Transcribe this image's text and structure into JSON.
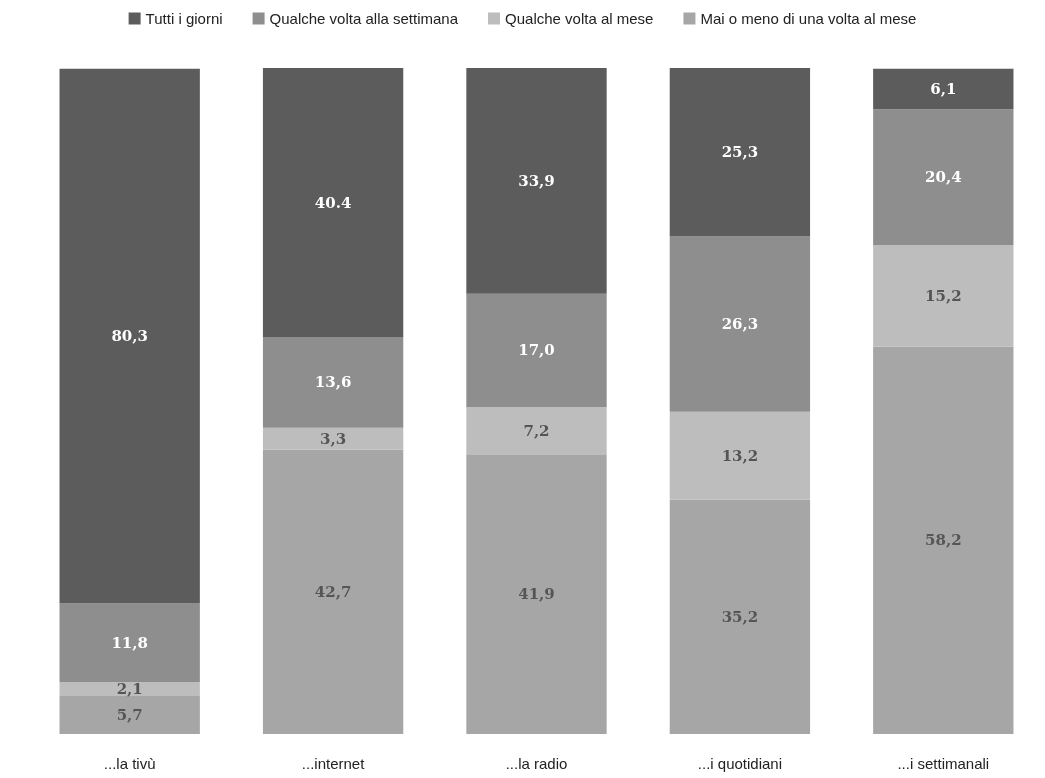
{
  "chart_data": {
    "type": "bar",
    "stacked": true,
    "legend": "top",
    "tick_labels": "x",
    "categories": [
      "...la tivù",
      "...internet",
      "...la radio",
      "...i quotidiani",
      "...i settimanali"
    ],
    "series": [
      {
        "name": "Mai o meno di una volta al mese",
        "color": "#a6a6a6",
        "values": [
          5.7,
          42.7,
          41.9,
          35.2,
          58.2
        ],
        "value_labels": [
          "5,7",
          "42,7",
          "41,9",
          "35,2",
          "58,2"
        ]
      },
      {
        "name": "Qualche volta al mese",
        "color": "#bdbdbd",
        "values": [
          2.1,
          3.3,
          7.2,
          13.2,
          15.2
        ],
        "value_labels": [
          "2,1",
          "3,3",
          "7,2",
          "13,2",
          "15,2"
        ]
      },
      {
        "name": "Qualche volta alla settimana",
        "color": "#8e8e8e",
        "values": [
          11.8,
          13.6,
          17.0,
          26.3,
          20.4
        ],
        "value_labels": [
          "11,8",
          "13,6",
          "17,0",
          "26,3",
          "20,4"
        ]
      },
      {
        "name": "Tutti i giorni",
        "color": "#5c5c5c",
        "values": [
          80.3,
          40.4,
          33.9,
          25.3,
          6.1
        ],
        "value_labels": [
          "80,3",
          "40.4",
          "33,9",
          "25,3",
          "6,1"
        ]
      }
    ]
  }
}
